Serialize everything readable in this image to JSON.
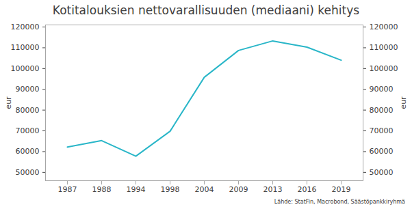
{
  "chart_data": {
    "type": "line",
    "title": "Kotitalouksien nettovarallisuuden (mediaani) kehitys",
    "source": "Lähde: StatFin, Macrobond, Säästöpankkiryhmä",
    "categories": [
      "1987",
      "1988",
      "1994",
      "1998",
      "2004",
      "2009",
      "2013",
      "2016",
      "2019"
    ],
    "values": [
      62200,
      65300,
      57800,
      69800,
      95800,
      108700,
      113300,
      110300,
      104000
    ],
    "color": "#29b6c8",
    "ylabel": "eur",
    "ylim": [
      46000,
      121000
    ],
    "yticks": [
      50000,
      60000,
      70000,
      80000,
      90000,
      100000,
      110000,
      120000
    ],
    "y2label": "eur",
    "y2lim": [
      46000,
      121000
    ],
    "y2ticks": [
      50000,
      60000,
      70000,
      80000,
      90000,
      100000,
      110000,
      120000
    ],
    "grid": false
  }
}
